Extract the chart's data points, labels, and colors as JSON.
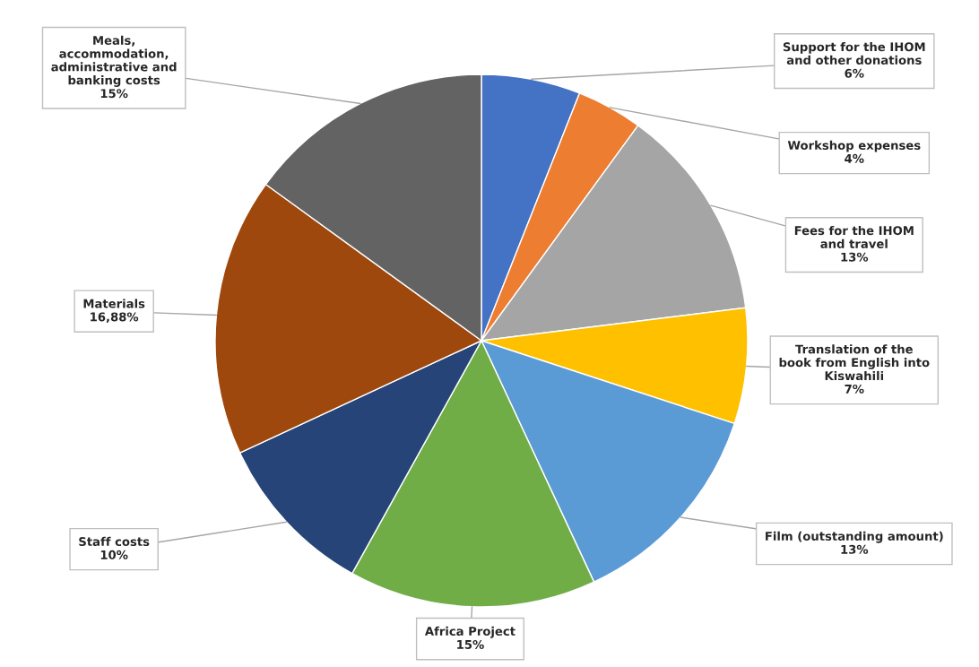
{
  "chart_data": {
    "type": "pie",
    "categories": [
      "Support for the IHOM\nand other donations",
      "Workshop expenses",
      "Fees for the IHOM\nand travel",
      "Translation of the\nbook from English into\nKiswahili",
      "Film (outstanding amount)",
      "Africa Project",
      "Staff costs",
      "Materials",
      "Meals,\naccommodation,\nadministrative and\nbanking costs"
    ],
    "values": [
      6,
      4,
      13,
      7,
      13,
      15,
      10,
      16.88,
      15
    ],
    "value_labels": [
      "6%",
      "4%",
      "13%",
      "7%",
      "13%",
      "15%",
      "10%",
      "16,88%",
      "15%"
    ],
    "colors": [
      "#4472c4",
      "#ed7d31",
      "#a5a5a5",
      "#ffc000",
      "#5b9bd5",
      "#70ad47",
      "#264478",
      "#9e480e",
      "#636363"
    ],
    "legend": false
  }
}
